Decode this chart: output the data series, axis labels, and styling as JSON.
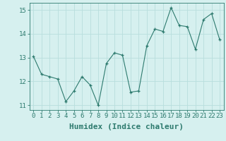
{
  "x": [
    0,
    1,
    2,
    3,
    4,
    5,
    6,
    7,
    8,
    9,
    10,
    11,
    12,
    13,
    14,
    15,
    16,
    17,
    18,
    19,
    20,
    21,
    22,
    23
  ],
  "y": [
    13.05,
    12.3,
    12.2,
    12.1,
    11.15,
    11.6,
    12.2,
    11.85,
    11.0,
    12.75,
    13.2,
    13.1,
    11.55,
    11.6,
    13.5,
    14.2,
    14.1,
    15.1,
    14.35,
    14.3,
    13.35,
    14.6,
    14.85,
    13.75
  ],
  "line_color": "#2d7a6e",
  "marker": "+",
  "marker_color": "#2d7a6e",
  "bg_color": "#d6f0ef",
  "grid_color": "#b8dedd",
  "axis_color": "#2d7a6e",
  "tick_color": "#2d7a6e",
  "xlabel": "Humidex (Indice chaleur)",
  "ylabel": "",
  "title": "",
  "xlim": [
    -0.5,
    23.5
  ],
  "ylim": [
    10.8,
    15.3
  ],
  "yticks": [
    11,
    12,
    13,
    14,
    15
  ],
  "xticks": [
    0,
    1,
    2,
    3,
    4,
    5,
    6,
    7,
    8,
    9,
    10,
    11,
    12,
    13,
    14,
    15,
    16,
    17,
    18,
    19,
    20,
    21,
    22,
    23
  ],
  "font_size": 6.5,
  "label_font_size": 8.0
}
